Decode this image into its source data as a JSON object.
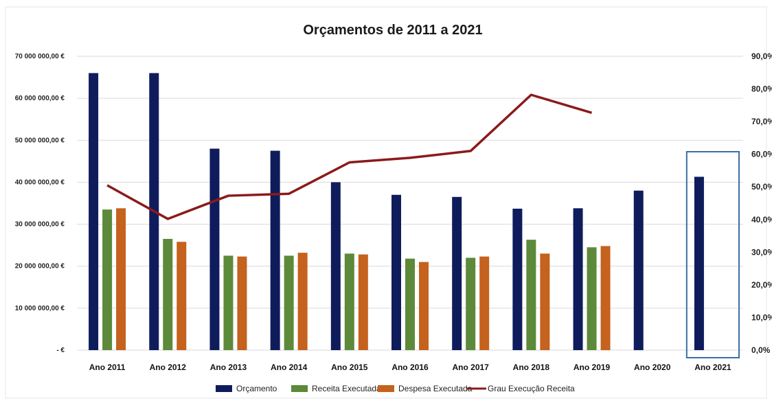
{
  "chart_data": {
    "type": "bar",
    "title": "Orçamentos de 2011 a 2021",
    "categories": [
      "Ano 2011",
      "Ano 2012",
      "Ano 2013",
      "Ano 2014",
      "Ano 2015",
      "Ano 2016",
      "Ano 2017",
      "Ano 2018",
      "Ano 2019",
      "Ano 2020",
      "Ano 2021"
    ],
    "series": [
      {
        "name": "Orçamento",
        "kind": "bar",
        "color": "#0f1c5c",
        "values": [
          66000000,
          66000000,
          48000000,
          47500000,
          40000000,
          37000000,
          36500000,
          33700000,
          33800000,
          38000000,
          41300000
        ]
      },
      {
        "name": "Receita Executada",
        "kind": "bar",
        "color": "#5c8a3a",
        "values": [
          33500000,
          26500000,
          22500000,
          22500000,
          23000000,
          21800000,
          22000000,
          26300000,
          24500000,
          null,
          null
        ]
      },
      {
        "name": "Despesa Executada",
        "kind": "bar",
        "color": "#c4621e",
        "values": [
          33800000,
          25800000,
          22300000,
          23200000,
          22800000,
          21000000,
          22300000,
          23000000,
          24800000,
          null,
          null
        ]
      },
      {
        "name": "Grau Execução Receita",
        "kind": "line",
        "axis": "right",
        "color": "#8b1a1a",
        "values": [
          50.5,
          40.2,
          47.3,
          47.9,
          57.5,
          58.9,
          61.0,
          78.2,
          72.7,
          null,
          null
        ]
      }
    ],
    "ylim": [
      0,
      70000000
    ],
    "y_ticks": [
      0,
      10000000,
      20000000,
      30000000,
      40000000,
      50000000,
      60000000,
      70000000
    ],
    "y_tick_labels": [
      "-  €",
      "10 000 000,00 €",
      "20 000 000,00 €",
      "30 000 000,00 €",
      "40 000 000,00 €",
      "50 000 000,00 €",
      "60 000 000,00 €",
      "70 000 000,00 €"
    ],
    "y2lim": [
      0,
      90
    ],
    "y2_ticks": [
      0,
      10,
      20,
      30,
      40,
      50,
      60,
      70,
      80,
      90
    ],
    "y2_tick_labels": [
      "0,0%",
      "10,0%",
      "20,0%",
      "30,0%",
      "40,0%",
      "50,0%",
      "60,0%",
      "70,0%",
      "80,0%",
      "90,0%"
    ],
    "grid": true,
    "legend_position": "bottom",
    "highlight": {
      "category": "Ano 2021",
      "color": "#3a6ea5"
    }
  }
}
